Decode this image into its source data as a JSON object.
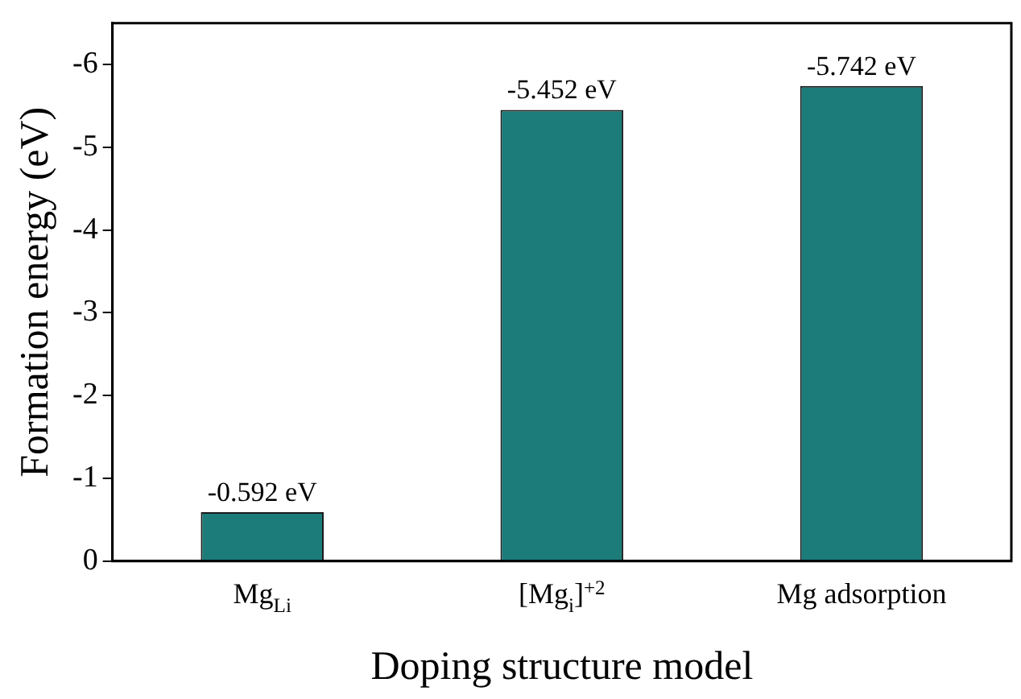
{
  "chart_data": {
    "type": "bar",
    "xlabel": "Doping structure model",
    "ylabel": "Formation energy (eV)",
    "categories": [
      "Mg$_{Li}$",
      "[Mg$_{i}$]$^{+2}$",
      "Mg adsorption"
    ],
    "values": [
      -0.592,
      -5.452,
      -5.742
    ],
    "color": "#1c7c7a",
    "value_labels": [
      "-0.592 eV",
      "-5.452 eV",
      "-5.742 eV"
    ],
    "ylim": [
      0,
      -6.5
    ],
    "yticks": [
      0,
      -1,
      -2,
      -3,
      -4,
      -5,
      -6
    ],
    "grid": false,
    "legend": false
  }
}
